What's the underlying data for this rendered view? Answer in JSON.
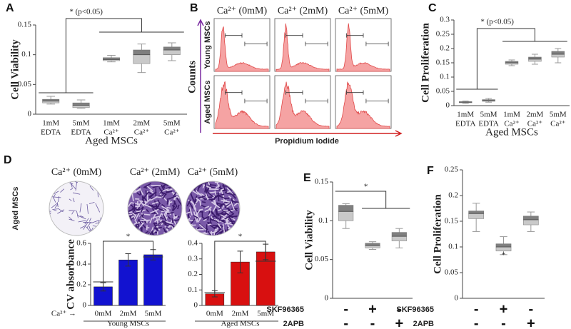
{
  "panel_labels": [
    "A",
    "B",
    "C",
    "D",
    "E",
    "F"
  ],
  "flow": {
    "columns": [
      "Ca²⁺ (0mM)",
      "Ca²⁺ (2mM)",
      "Ca²⁺ (5mM)"
    ],
    "rows": [
      "Young MSCs",
      "Aged MSCs"
    ],
    "y_label": "Counts",
    "x_label": "Propidium Iodide"
  },
  "stain_images": {
    "columns": [
      "Ca²⁺ (0mM)",
      "Ca²⁺ (2mM)",
      "Ca²⁺ (5mM)"
    ],
    "row_label": "Aged MSCs"
  },
  "chart_data": [
    {
      "type": "box",
      "y_label": "Cell Viability",
      "x_label": "Aged MSCs",
      "annotation": "* (p<0.05)",
      "categories": [
        [
          "1mM",
          "EDTA"
        ],
        [
          "5mM",
          "EDTA"
        ],
        [
          "1mM",
          "Ca²⁺"
        ],
        [
          "2mM",
          "Ca²⁺"
        ],
        [
          "5mM",
          "Ca²⁺"
        ]
      ],
      "boxes": [
        {
          "whisker_low": 0.017,
          "q1": 0.019,
          "median": 0.022,
          "q3": 0.025,
          "whisker_high": 0.03
        },
        {
          "whisker_low": 0.01,
          "q1": 0.011,
          "median": 0.015,
          "q3": 0.019,
          "whisker_high": 0.024
        },
        {
          "whisker_low": 0.088,
          "q1": 0.09,
          "median": 0.092,
          "q3": 0.095,
          "whisker_high": 0.099
        },
        {
          "whisker_low": 0.07,
          "q1": 0.085,
          "median": 0.1,
          "q3": 0.108,
          "whisker_high": 0.118
        },
        {
          "whisker_low": 0.09,
          "q1": 0.1,
          "median": 0.108,
          "q3": 0.113,
          "whisker_high": 0.12
        }
      ],
      "colors": {
        "upper": "#7f7f7f",
        "lower": "#c9c9c9",
        "y_label": "#1a1adb",
        "x_label": "#e02020"
      },
      "ylim": [
        0,
        0.15
      ],
      "yticks": [
        0,
        0.05,
        0.1,
        0.15
      ]
    },
    {
      "type": "box",
      "y_label": "Cell Proliferation",
      "x_label": "Aged MSCs",
      "annotation": "* (p<0.05)",
      "categories": [
        [
          "1mM",
          "EDTA"
        ],
        [
          "5mM",
          "EDTA"
        ],
        [
          "1mM",
          "Ca²⁺"
        ],
        [
          "2mM",
          "Ca²⁺"
        ],
        [
          "5mM",
          "Ca²⁺"
        ]
      ],
      "boxes": [
        {
          "whisker_low": 0.008,
          "q1": 0.01,
          "median": 0.012,
          "q3": 0.014,
          "whisker_high": 0.016
        },
        {
          "whisker_low": 0.012,
          "q1": 0.015,
          "median": 0.018,
          "q3": 0.021,
          "whisker_high": 0.025
        },
        {
          "whisker_low": 0.14,
          "q1": 0.145,
          "median": 0.15,
          "q3": 0.155,
          "whisker_high": 0.16
        },
        {
          "whisker_low": 0.145,
          "q1": 0.155,
          "median": 0.163,
          "q3": 0.17,
          "whisker_high": 0.18
        },
        {
          "whisker_low": 0.15,
          "q1": 0.17,
          "median": 0.18,
          "q3": 0.19,
          "whisker_high": 0.2
        }
      ],
      "colors": {
        "upper": "#7f7f7f",
        "lower": "#c9c9c9",
        "y_label": "#a52a1a",
        "x_label": "#e02020"
      },
      "ylim": [
        0,
        0.3
      ],
      "yticks": [
        0,
        0.05,
        0.1,
        0.15,
        0.2,
        0.25,
        0.3
      ]
    },
    {
      "type": "bar",
      "y_label": "CV absorbance",
      "x_label": "Young MSCs",
      "x_prefix": "Ca²⁺ →",
      "annotation": "*",
      "categories": [
        "0mM",
        "2mM",
        "5mM"
      ],
      "values": [
        0.18,
        0.44,
        0.49
      ],
      "errors": [
        0.04,
        0.06,
        0.05
      ],
      "color": "#1212d0",
      "colors": {
        "y_label": "#29a8e0",
        "x_label": "#1a1adb"
      },
      "ylim": [
        0,
        0.6
      ],
      "yticks": [
        0,
        0.2,
        0.4,
        0.6
      ]
    },
    {
      "type": "bar",
      "x_label": "Aged MSCs",
      "annotation": "*",
      "categories": [
        "0mM",
        "2mM",
        "5mM"
      ],
      "values": [
        0.075,
        0.28,
        0.345
      ],
      "errors": [
        0.02,
        0.07,
        0.05
      ],
      "color": "#d81010",
      "colors": {
        "x_label": "#e02020"
      },
      "ylim": [
        0,
        0.4
      ],
      "yticks": [
        0,
        0.1,
        0.2,
        0.3,
        0.4
      ]
    },
    {
      "type": "box",
      "y_label": "Cell Viability",
      "annotation": "*",
      "boxes": [
        {
          "whisker_low": 0.09,
          "q1": 0.1,
          "median": 0.112,
          "q3": 0.12,
          "whisker_high": 0.122
        },
        {
          "whisker_low": 0.063,
          "q1": 0.065,
          "median": 0.068,
          "q3": 0.071,
          "whisker_high": 0.073
        },
        {
          "whisker_low": 0.065,
          "q1": 0.074,
          "median": 0.08,
          "q3": 0.085,
          "whisker_high": 0.09
        }
      ],
      "treatments": [
        {
          "name": "SKF96365",
          "color": "#22c522",
          "marks": [
            "-",
            "+",
            "-"
          ]
        },
        {
          "name": "2APB",
          "color": "#a0401a",
          "marks": [
            "-",
            "-",
            "+"
          ]
        }
      ],
      "colors": {
        "upper": "#7f7f7f",
        "lower": "#c9c9c9",
        "y_label": "#1a1adb"
      },
      "ylim": [
        0,
        0.15
      ],
      "yticks": [
        0,
        0.05,
        0.1,
        0.15
      ]
    },
    {
      "type": "box",
      "y_label": "Cell Proliferation",
      "annotation": "*",
      "boxes": [
        {
          "whisker_low": 0.13,
          "q1": 0.155,
          "median": 0.165,
          "q3": 0.17,
          "whisker_high": 0.185
        },
        {
          "whisker_low": 0.085,
          "q1": 0.092,
          "median": 0.1,
          "q3": 0.106,
          "whisker_high": 0.12
        },
        {
          "whisker_low": 0.13,
          "q1": 0.143,
          "median": 0.153,
          "q3": 0.16,
          "whisker_high": 0.168
        }
      ],
      "treatments": [
        {
          "name": "SKF96365",
          "color": "#22c522",
          "marks": [
            "-",
            "+",
            "-"
          ]
        },
        {
          "name": "2APB",
          "color": "#a0401a",
          "marks": [
            "-",
            "-",
            "+"
          ]
        }
      ],
      "colors": {
        "upper": "#7f7f7f",
        "lower": "#c9c9c9",
        "y_label": "#a52a1a"
      },
      "ylim": [
        0,
        0.25
      ],
      "yticks": [
        0,
        0.05,
        0.1,
        0.15,
        0.2,
        0.25
      ]
    }
  ]
}
